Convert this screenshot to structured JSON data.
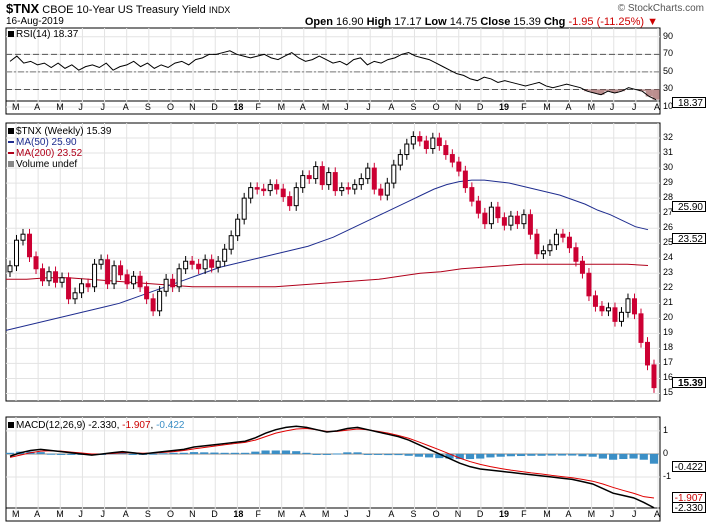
{
  "header": {
    "symbol": "$TNX",
    "name": "CBOE 10-Year US Treasury Yield",
    "exchange": "INDX",
    "date": "16-Aug-2019",
    "watermark": "© StockCharts.com",
    "open_label": "Open",
    "open": "16.90",
    "high_label": "High",
    "high": "17.17",
    "low_label": "Low",
    "low": "14.75",
    "close_label": "Close",
    "close": "15.39",
    "chg_label": "Chg",
    "chg": "-1.95 (-11.25%)"
  },
  "colors": {
    "up": "#000000",
    "down": "#cc0033",
    "ma50": "#1f2d8f",
    "ma200": "#b0001a",
    "hist": "#3b8fc6",
    "rsi_fill": "#a06060"
  },
  "chart_data": [
    {
      "type": "line",
      "panel": "rsi",
      "legend": "RSI(14) 18.37",
      "ylim": [
        10,
        100
      ],
      "yticks": [
        90,
        70,
        50,
        30,
        10
      ],
      "levels": [
        70,
        30
      ],
      "last": "18.37",
      "values": [
        62,
        68,
        60,
        62,
        58,
        60,
        55,
        60,
        54,
        58,
        52,
        56,
        58,
        55,
        60,
        52,
        56,
        58,
        62,
        56,
        60,
        54,
        58,
        55,
        60,
        62,
        58,
        64,
        66,
        70,
        70,
        72,
        74,
        70,
        68,
        66,
        68,
        70,
        66,
        64,
        68,
        72,
        66,
        62,
        64,
        68,
        64,
        60,
        62,
        58,
        64,
        66,
        58,
        62,
        60,
        64,
        66,
        70,
        72,
        68,
        66,
        64,
        60,
        56,
        52,
        48,
        46,
        42,
        40,
        44,
        42,
        38,
        40,
        38,
        36,
        34,
        36,
        38,
        34,
        32,
        34,
        36,
        34,
        32,
        28,
        26,
        24,
        28,
        26,
        28,
        32,
        30,
        28,
        22,
        18.37
      ]
    },
    {
      "type": "line",
      "panel": "price",
      "legend": [
        "$TNX (Weekly) 15.39",
        "MA(50) 25.90",
        "MA(200) 23.52",
        "Volume undef"
      ],
      "ylim": [
        14.5,
        33
      ],
      "yticks": [
        32,
        31,
        30,
        29,
        28,
        27,
        26,
        25,
        24,
        23,
        22,
        21,
        20,
        19,
        18,
        17,
        16,
        15
      ],
      "series": [
        {
          "name": "$TNX (Weekly)",
          "values": [
            23.5,
            25.2,
            25.6,
            24.1,
            23.3,
            22.5,
            23.1,
            22.4,
            22.7,
            21.3,
            21.7,
            22.3,
            22.1,
            23.6,
            23.9,
            22.3,
            23.5,
            22.9,
            22.3,
            22.8,
            22.1,
            21.3,
            20.5,
            21.8,
            22.6,
            22.1,
            23.3,
            23.8,
            23.6,
            23.3,
            23.9,
            23.4,
            23.8,
            24.6,
            25.5,
            26.6,
            28.0,
            28.7,
            28.6,
            28.5,
            28.9,
            28.6,
            28.1,
            27.5,
            28.7,
            29.5,
            29.3,
            30.1,
            28.9,
            29.7,
            28.5,
            28.7,
            28.6,
            28.9,
            29.3,
            30.0,
            28.6,
            28.2,
            29.0,
            30.2,
            30.9,
            31.6,
            32.1,
            31.8,
            31.3,
            32.0,
            31.5,
            30.9,
            30.4,
            29.8,
            28.7,
            27.8,
            27.0,
            26.3,
            27.4,
            26.7,
            26.2,
            26.8,
            26.3,
            26.9,
            25.6,
            24.3,
            24.5,
            24.9,
            25.6,
            25.4,
            24.7,
            23.8,
            23.0,
            21.5,
            20.8,
            20.5,
            20.7,
            19.8,
            20.4,
            21.3,
            20.3,
            18.4,
            16.9,
            15.39
          ]
        },
        {
          "name": "MA(50)",
          "values": [
            19.2,
            19.4,
            19.6,
            19.8,
            20.0,
            20.2,
            20.4,
            20.6,
            20.8,
            21.0,
            21.3,
            21.6,
            21.9,
            22.2,
            22.5,
            22.8,
            23.1,
            23.4,
            23.6,
            23.8,
            24.0,
            24.2,
            24.4,
            24.6,
            24.8,
            25.1,
            25.4,
            25.8,
            26.2,
            26.6,
            27.0,
            27.4,
            27.8,
            28.2,
            28.6,
            28.9,
            29.1,
            29.2,
            29.2,
            29.1,
            29.0,
            28.8,
            28.6,
            28.4,
            28.2,
            27.9,
            27.6,
            27.2,
            26.9,
            26.5,
            26.1,
            25.9
          ]
        },
        {
          "name": "MA(200)",
          "values": [
            22.6,
            22.6,
            22.7,
            22.7,
            22.6,
            22.5,
            22.4,
            22.3,
            22.2,
            22.1,
            22.1,
            22.1,
            22.1,
            22.1,
            22.2,
            22.3,
            22.4,
            22.5,
            22.6,
            22.8,
            23.0,
            23.1,
            23.3,
            23.4,
            23.5,
            23.6,
            23.6,
            23.6,
            23.6,
            23.6,
            23.6,
            23.52
          ]
        }
      ]
    },
    {
      "type": "bar",
      "panel": "macd",
      "legend": "MACD(12,26,9) -2.330, -1.907, -0.422",
      "ylim": [
        -2.6,
        1.6
      ],
      "yticks": [
        1,
        0,
        -1
      ],
      "last_labels": [
        "-0.422",
        "-1.907",
        "-2.330"
      ],
      "macd": [
        -0.1,
        0.05,
        0.15,
        0.2,
        0.15,
        0.1,
        0.05,
        0.0,
        -0.05,
        0.0,
        0.05,
        0.1,
        0.05,
        0.0,
        0.05,
        0.1,
        0.15,
        0.2,
        0.3,
        0.35,
        0.4,
        0.45,
        0.5,
        0.55,
        0.7,
        0.9,
        1.05,
        1.15,
        1.2,
        1.15,
        1.05,
        0.95,
        1.0,
        1.1,
        1.15,
        1.05,
        0.95,
        0.85,
        0.75,
        0.6,
        0.4,
        0.2,
        0.0,
        -0.2,
        -0.4,
        -0.55,
        -0.65,
        -0.7,
        -0.75,
        -0.8,
        -0.85,
        -0.9,
        -0.95,
        -1.0,
        -1.05,
        -1.1,
        -1.2,
        -1.3,
        -1.5,
        -1.7,
        -1.8,
        -1.9,
        -2.1,
        -2.33
      ],
      "signal": [
        -0.15,
        -0.05,
        0.05,
        0.12,
        0.14,
        0.12,
        0.08,
        0.04,
        0.0,
        0.0,
        0.02,
        0.06,
        0.05,
        0.03,
        0.04,
        0.07,
        0.1,
        0.15,
        0.22,
        0.28,
        0.34,
        0.4,
        0.45,
        0.5,
        0.6,
        0.75,
        0.9,
        1.0,
        1.08,
        1.1,
        1.05,
        0.98,
        0.98,
        1.03,
        1.08,
        1.05,
        0.98,
        0.9,
        0.8,
        0.68,
        0.52,
        0.35,
        0.18,
        0.0,
        -0.18,
        -0.33,
        -0.45,
        -0.55,
        -0.63,
        -0.7,
        -0.76,
        -0.82,
        -0.87,
        -0.93,
        -0.98,
        -1.03,
        -1.1,
        -1.18,
        -1.3,
        -1.45,
        -1.58,
        -1.7,
        -1.85,
        -1.907
      ],
      "histogram": [
        0.05,
        0.1,
        0.1,
        0.08,
        0.01,
        -0.02,
        -0.03,
        -0.04,
        -0.05,
        0.0,
        0.03,
        0.04,
        0.0,
        -0.03,
        0.01,
        0.03,
        0.05,
        0.05,
        0.08,
        0.07,
        0.06,
        0.05,
        0.05,
        0.05,
        0.1,
        0.15,
        0.15,
        0.15,
        0.12,
        0.05,
        0.0,
        -0.03,
        0.02,
        0.07,
        0.07,
        0.0,
        -0.03,
        -0.05,
        -0.05,
        -0.08,
        -0.12,
        -0.15,
        -0.18,
        -0.2,
        -0.22,
        -0.22,
        -0.2,
        -0.15,
        -0.12,
        -0.1,
        -0.09,
        -0.08,
        -0.08,
        -0.07,
        -0.07,
        -0.07,
        -0.1,
        -0.12,
        -0.2,
        -0.25,
        -0.22,
        -0.2,
        -0.25,
        -0.422
      ]
    }
  ],
  "x_axis": {
    "labels": [
      "M",
      "A",
      "M",
      "J",
      "J",
      "A",
      "S",
      "O",
      "N",
      "D",
      "18",
      "F",
      "M",
      "A",
      "M",
      "J",
      "J",
      "A",
      "S",
      "O",
      "N",
      "D",
      "19",
      "F",
      "M",
      "A",
      "M",
      "J",
      "J",
      "A"
    ]
  }
}
